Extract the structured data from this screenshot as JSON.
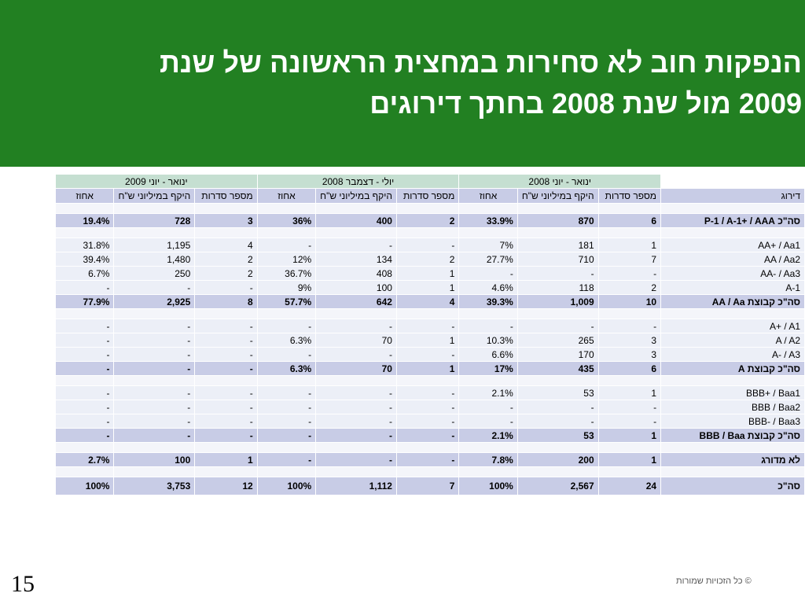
{
  "title": {
    "line1": "הנפקות חוב לא סחירות במחצית הראשונה של שנת",
    "line2": "2009 מול שנת 2008 בחתך דירוגים"
  },
  "periods": {
    "h1_2009": "ינואר - יוני 2009",
    "h2_2008": "יולי - דצמבר 2008",
    "h1_2008": "ינואר - יוני 2008"
  },
  "columns": {
    "percent": "אחוז",
    "volume": "היקף במיליוני ש\"ח",
    "series": "מספר סדרות",
    "rating": "דירוג"
  },
  "rows": [
    {
      "type": "sep"
    },
    {
      "type": "tot",
      "rating": "סה\"כ P-1 / A-1+ / AAA",
      "v": [
        "19.4%",
        "728",
        "3",
        "36%",
        "400",
        "2",
        "33.9%",
        "870",
        "6"
      ]
    },
    {
      "type": "sep"
    },
    {
      "type": "data",
      "rating": "AA+ / Aa1",
      "v": [
        "31.8%",
        "1,195",
        "4",
        "-",
        "-",
        "-",
        "7%",
        "181",
        "1"
      ]
    },
    {
      "type": "data",
      "rating": "AA / Aa2",
      "v": [
        "39.4%",
        "1,480",
        "2",
        "12%",
        "134",
        "2",
        "27.7%",
        "710",
        "7"
      ]
    },
    {
      "type": "data",
      "rating": "AA- / Aa3",
      "v": [
        "6.7%",
        "250",
        "2",
        "36.7%",
        "408",
        "1",
        "-",
        "-",
        "-"
      ]
    },
    {
      "type": "data",
      "rating": "A-1",
      "v": [
        "-",
        "-",
        "-",
        "9%",
        "100",
        "1",
        "4.6%",
        "118",
        "2"
      ]
    },
    {
      "type": "tot",
      "rating": "סה\"כ קבוצת AA / Aa",
      "v": [
        "77.9%",
        "2,925",
        "8",
        "57.7%",
        "642",
        "4",
        "39.3%",
        "1,009",
        "10"
      ]
    },
    {
      "type": "sep"
    },
    {
      "type": "data",
      "rating": "A+ / A1",
      "v": [
        "-",
        "-",
        "-",
        "-",
        "-",
        "-",
        "-",
        "-",
        "-"
      ]
    },
    {
      "type": "data",
      "rating": "A / A2",
      "v": [
        "-",
        "-",
        "-",
        "6.3%",
        "70",
        "1",
        "10.3%",
        "265",
        "3"
      ]
    },
    {
      "type": "data",
      "rating": "A- / A3",
      "v": [
        "-",
        "-",
        "-",
        "-",
        "-",
        "-",
        "6.6%",
        "170",
        "3"
      ]
    },
    {
      "type": "tot",
      "rating": "סה\"כ קבוצת A",
      "v": [
        "-",
        "-",
        "-",
        "6.3%",
        "70",
        "1",
        "17%",
        "435",
        "6"
      ]
    },
    {
      "type": "sep"
    },
    {
      "type": "data",
      "rating": "BBB+ / Baa1",
      "v": [
        "-",
        "-",
        "-",
        "-",
        "-",
        "-",
        "2.1%",
        "53",
        "1"
      ]
    },
    {
      "type": "data",
      "rating": "BBB / Baa2",
      "v": [
        "-",
        "-",
        "-",
        "-",
        "-",
        "-",
        "-",
        "-",
        "-"
      ]
    },
    {
      "type": "data",
      "rating": "BBB- / Baa3",
      "v": [
        "-",
        "-",
        "-",
        "-",
        "-",
        "-",
        "-",
        "-",
        "-"
      ]
    },
    {
      "type": "tot",
      "rating": "סה\"כ קבוצת BBB / Baa",
      "v": [
        "-",
        "-",
        "-",
        "-",
        "-",
        "-",
        "2.1%",
        "53",
        "1"
      ]
    },
    {
      "type": "sep"
    },
    {
      "type": "tot",
      "rating": "לא מדורג",
      "v": [
        "2.7%",
        "100",
        "1",
        "-",
        "-",
        "-",
        "7.8%",
        "200",
        "1"
      ]
    },
    {
      "type": "sep"
    },
    {
      "type": "grand",
      "rating": "סה\"כ",
      "v": [
        "100%",
        "3,753",
        "12",
        "100%",
        "1,112",
        "7",
        "100%",
        "2,567",
        "24"
      ]
    }
  ],
  "page_number": "15",
  "copyright": "© כל הזכויות שמורות",
  "colors": {
    "header_green": "#228022",
    "period_header": "#c5dfd1",
    "column_header": "#c8cce6",
    "data_row": "#eceff7"
  }
}
